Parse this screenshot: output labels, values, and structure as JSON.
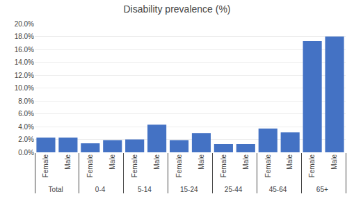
{
  "chart_data": {
    "type": "bar",
    "title": "Disability prevalence (%)",
    "categories": [
      "Total",
      "0-4",
      "5-14",
      "15-24",
      "25-44",
      "45-64",
      "65+"
    ],
    "series": [
      {
        "name": "Female",
        "color": "#4472c4",
        "values": [
          0.023,
          0.014,
          0.02,
          0.019,
          0.013,
          0.037,
          0.173
        ]
      },
      {
        "name": "Male",
        "color": "#4472c4",
        "values": [
          0.023,
          0.019,
          0.043,
          0.03,
          0.013,
          0.031,
          0.18
        ]
      }
    ],
    "ylim": [
      0,
      0.2
    ],
    "yticks": [
      {
        "value": 0.0,
        "label": "0.0%"
      },
      {
        "value": 0.02,
        "label": "2.0%"
      },
      {
        "value": 0.04,
        "label": "4.0%"
      },
      {
        "value": 0.06,
        "label": "6.0%"
      },
      {
        "value": 0.08,
        "label": "8.0%"
      },
      {
        "value": 0.1,
        "label": "10.0%"
      },
      {
        "value": 0.12,
        "label": "12.0%"
      },
      {
        "value": 0.14,
        "label": "14.0%"
      },
      {
        "value": 0.16,
        "label": "16.0%"
      },
      {
        "value": 0.18,
        "label": "18.0%"
      },
      {
        "value": 0.2,
        "label": "20.0%"
      }
    ],
    "grid": true
  }
}
